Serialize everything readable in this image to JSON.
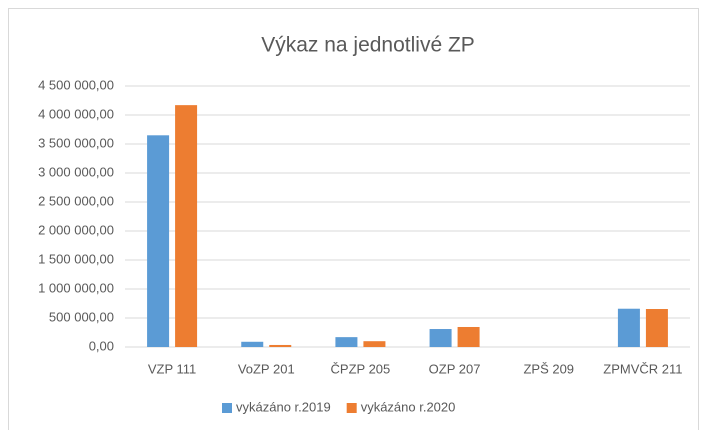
{
  "chart_data": {
    "type": "bar",
    "title": "Výkaz na jednotlivé ZP",
    "categories": [
      "VZP 111",
      "VoZP 201",
      "ČPZP 205",
      "OZP 207",
      "ZPŠ 209",
      "ZPMVČR 211"
    ],
    "series": [
      {
        "name": "vykázáno r.2019",
        "color": "#5b9bd5",
        "values": [
          3650000,
          90000,
          170000,
          310000,
          0,
          660000
        ]
      },
      {
        "name": "vykázáno r.2020",
        "color": "#ed7d31",
        "values": [
          4170000,
          35000,
          100000,
          345000,
          0,
          655000
        ]
      }
    ],
    "ylim": [
      0,
      4500000
    ],
    "yticks": [
      {
        "value": 0,
        "label": "0,00"
      },
      {
        "value": 500000,
        "label": "500 000,00"
      },
      {
        "value": 1000000,
        "label": "1 000 000,00"
      },
      {
        "value": 1500000,
        "label": "1 500 000,00"
      },
      {
        "value": 2000000,
        "label": "2 000 000,00"
      },
      {
        "value": 2500000,
        "label": "2 500 000,00"
      },
      {
        "value": 3000000,
        "label": "3 000 000,00"
      },
      {
        "value": 3500000,
        "label": "3 500 000,00"
      },
      {
        "value": 4000000,
        "label": "4 000 000,00"
      },
      {
        "value": 4500000,
        "label": "4 500 000,00"
      }
    ],
    "grid": true,
    "legend": "bottom"
  }
}
